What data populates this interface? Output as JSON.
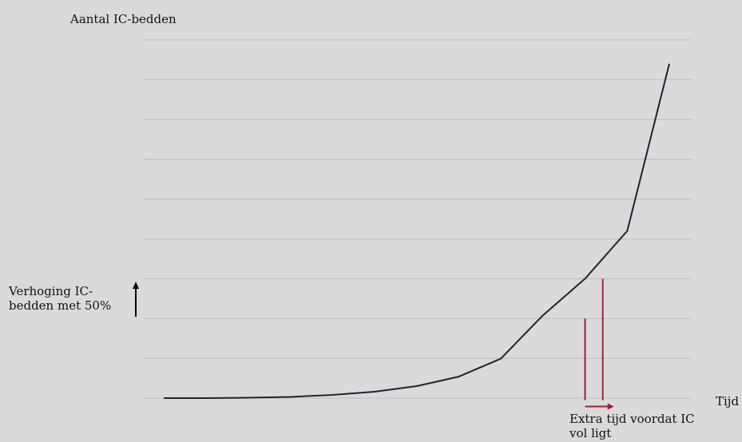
{
  "chart_data": {
    "type": "line",
    "title": "",
    "ylabel": "Aantal IC-bedden",
    "xlabel": "Tijd",
    "grid": true,
    "xlim": [
      0,
      12.7
    ],
    "ylim": [
      0,
      9
    ],
    "series": [
      {
        "x": [
          0,
          1,
          2,
          3,
          4,
          5,
          6,
          7,
          8,
          9,
          10,
          11,
          12
        ],
        "y": [
          0,
          0,
          0.01,
          0.03,
          0.08,
          0.16,
          0.3,
          0.54,
          0.99,
          2.08,
          3.0,
          4.2,
          8.4
        ]
      }
    ],
    "annotations": {
      "capacity_text": "Verhoging IC-bedden met 50%",
      "extra_time_text": "Extra tijd voordat IC vol ligt",
      "line_before": {
        "x": 10.0,
        "y": 2.0
      },
      "line_after": {
        "x": 10.42,
        "y": 3.0
      }
    },
    "colors": {
      "line": "#1e2430",
      "annotation": "#a31f34",
      "grid": "#bdbdbd",
      "arrow": "#000000"
    }
  }
}
